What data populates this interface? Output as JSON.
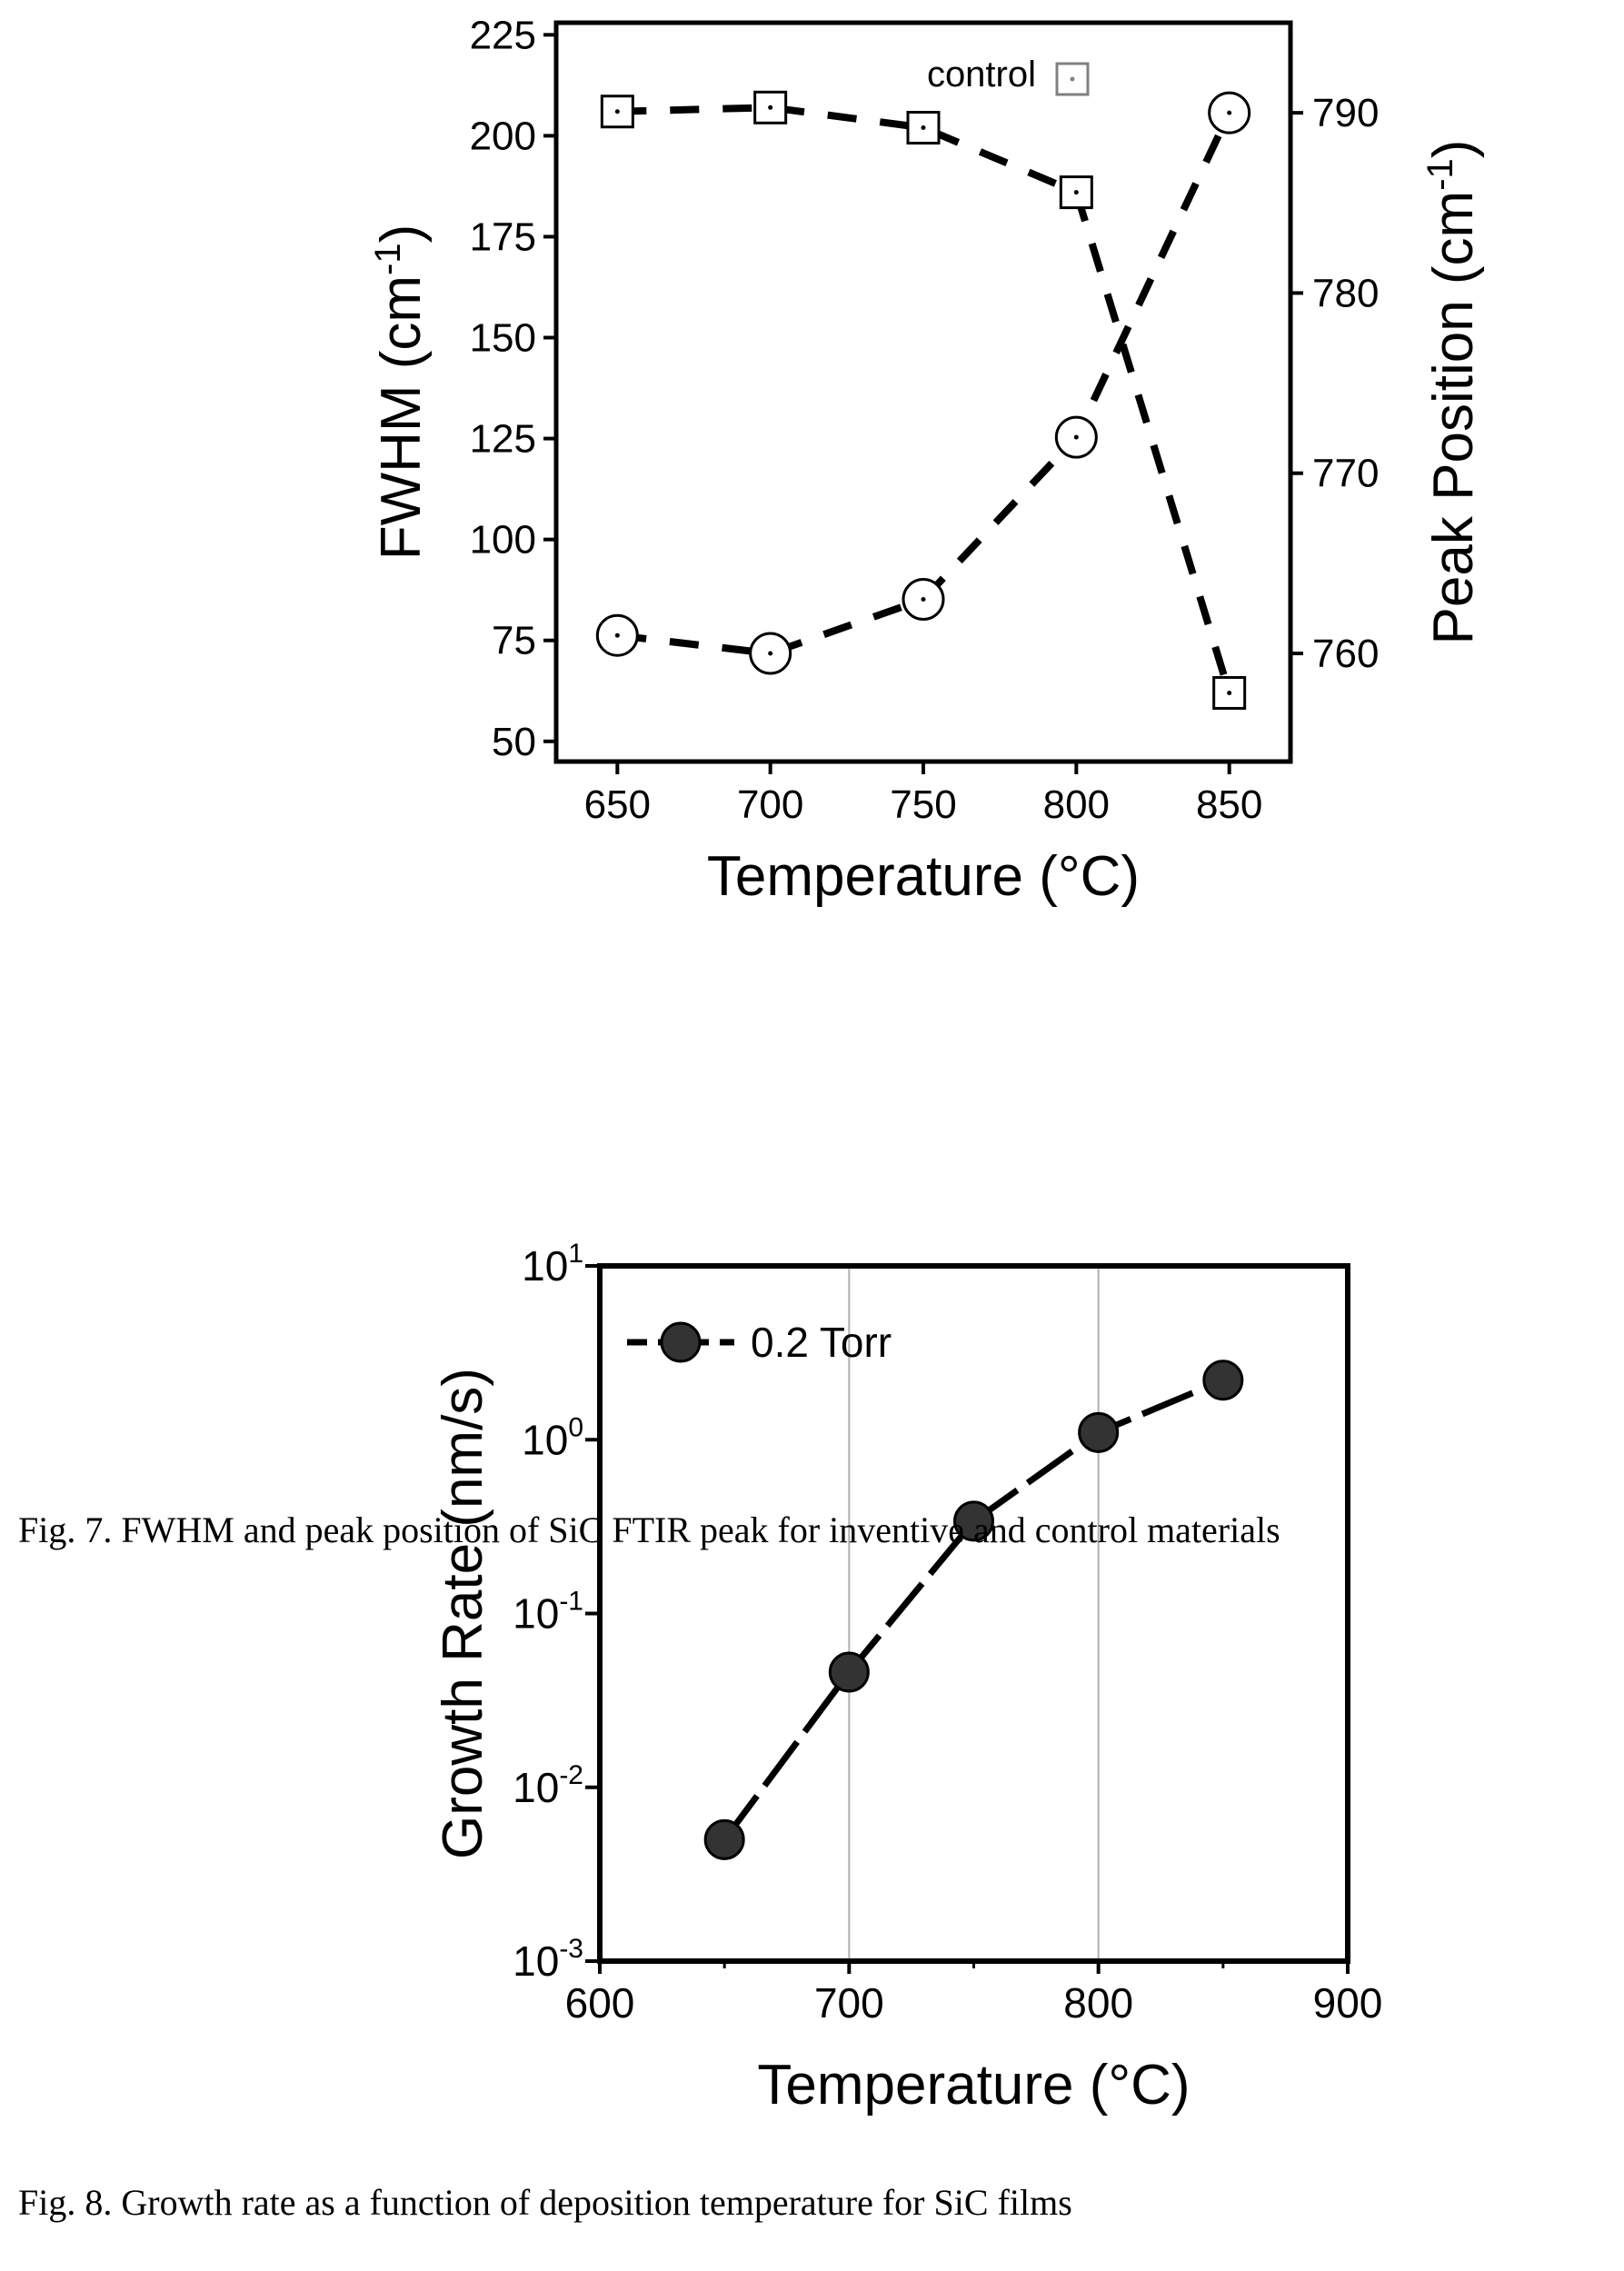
{
  "chart_data": [
    {
      "type": "scatter",
      "title": "",
      "xlabel": "Temperature (°C)",
      "ylabel": "FWHM (cm-1)",
      "ylabel_parts": {
        "text": "FWHM (cm",
        "sup": "-1",
        "close": ")"
      },
      "y2label": "Peak Position (cm-1)",
      "y2label_parts": {
        "text": "Peak Position (cm",
        "sup": "-1",
        "close": ")"
      },
      "xlim": [
        630,
        870
      ],
      "ylim": [
        45,
        228
      ],
      "y2lim": [
        754,
        795
      ],
      "xticks": [
        "650",
        "700",
        "750",
        "800",
        "850"
      ],
      "xtick_values": [
        650,
        700,
        750,
        800,
        850
      ],
      "yticks": [
        "50",
        "75",
        "100",
        "125",
        "150",
        "175",
        "200",
        "225"
      ],
      "ytick_values": [
        50,
        75,
        100,
        125,
        150,
        175,
        200,
        225
      ],
      "y2ticks": [
        "760",
        "770",
        "780",
        "790"
      ],
      "y2tick_values": [
        760,
        770,
        780,
        790
      ],
      "legend": {
        "label": "control",
        "position": "top-right"
      },
      "grid": false,
      "series": [
        {
          "name": "control",
          "axis": "left",
          "marker": "square",
          "line": "dashed",
          "x": [
            650,
            700,
            750,
            800,
            850
          ],
          "y": [
            206,
            207,
            202,
            186,
            62
          ]
        },
        {
          "axis": "right",
          "marker": "circle",
          "line": "dashed",
          "x": [
            650,
            700,
            750,
            800,
            850
          ],
          "y": [
            761,
            760,
            763,
            772,
            790
          ]
        }
      ]
    },
    {
      "type": "line",
      "title": "",
      "xlabel": "Temperature (°C)",
      "ylabel": "Growth Rate (nm/s)",
      "xlim": [
        600,
        900
      ],
      "ylim": [
        0.001,
        10
      ],
      "yscale": "log",
      "xticks": [
        "600",
        "700",
        "800",
        "900"
      ],
      "xtick_values": [
        600,
        700,
        800,
        900
      ],
      "yticks": [
        {
          "base": "10",
          "exp": "1",
          "value": 10
        },
        {
          "base": "10",
          "exp": "0",
          "value": 1
        },
        {
          "base": "10",
          "exp": "-1",
          "value": 0.1
        },
        {
          "base": "10",
          "exp": "-2",
          "value": 0.01
        },
        {
          "base": "10",
          "exp": "-3",
          "value": 0.001
        }
      ],
      "grid": "vertical lines at 700 and 800",
      "legend": {
        "label": "0.2 Torr",
        "position": "top-left"
      },
      "series": [
        {
          "name": "0.2 Torr",
          "marker": "filled-circle",
          "line": "dashed",
          "x": [
            650,
            700,
            750,
            800,
            850
          ],
          "y": [
            0.005,
            0.046,
            0.34,
            1.1,
            2.2
          ]
        }
      ]
    }
  ],
  "captions": {
    "fig7": "Fig. 7.  FWHM and peak position of SiC FTIR peak for inventive and control materials",
    "fig8": "Fig. 8. Growth rate as a function of deposition temperature for SiC films"
  },
  "colors": {
    "ink": "#000000",
    "marker_fill_fig8": "#333333",
    "legend_control": "#808080",
    "grid": "#b0b0b0"
  }
}
